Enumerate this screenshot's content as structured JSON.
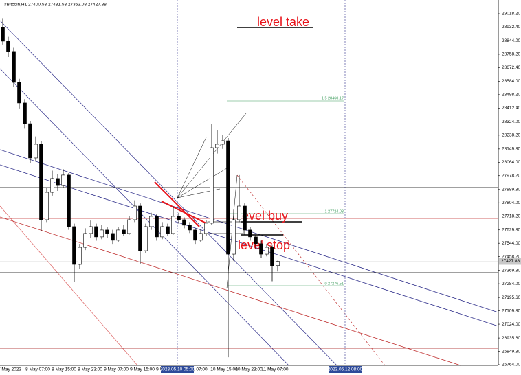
{
  "chart_data": {
    "type": "candlestick",
    "title": "#Bitcoin,H1  27400.53 27431.53 27363.08 27427.88",
    "ylim": [
      26724.3,
      29106.4
    ],
    "yticks": [
      {
        "value": 29018.2,
        "label": "29018.20"
      },
      {
        "value": 28932.4,
        "label": "28932.40"
      },
      {
        "value": 28844,
        "label": "28844.00"
      },
      {
        "value": 28758.2,
        "label": "28758.20"
      },
      {
        "value": 28672.4,
        "label": "28672.40"
      },
      {
        "value": 28584,
        "label": "28584.00"
      },
      {
        "value": 28498.2,
        "label": "28498.20"
      },
      {
        "value": 28412.4,
        "label": "28412.40"
      },
      {
        "value": 28324,
        "label": "28324.00"
      },
      {
        "value": 28238.2,
        "label": "28238.20"
      },
      {
        "value": 28149.8,
        "label": "28149.80"
      },
      {
        "value": 28064,
        "label": "28064.00"
      },
      {
        "value": 27978.2,
        "label": "27978.20"
      },
      {
        "value": 27889.8,
        "label": "27889.80"
      },
      {
        "value": 27804,
        "label": "27804.00"
      },
      {
        "value": 27718.2,
        "label": "27718.20"
      },
      {
        "value": 27629.8,
        "label": "27629.80"
      },
      {
        "value": 27544,
        "label": "27544.00"
      },
      {
        "value": 27458.2,
        "label": "27458.20"
      },
      {
        "value": 27369.8,
        "label": "27369.80"
      },
      {
        "value": 27284,
        "label": "27284.00"
      },
      {
        "value": 27195.6,
        "label": "27195.60"
      },
      {
        "value": 27109.8,
        "label": "27109.80"
      },
      {
        "value": 27024,
        "label": "27024.00"
      },
      {
        "value": 26935.6,
        "label": "26935.60"
      },
      {
        "value": 26849.8,
        "label": "26849.80"
      },
      {
        "value": 26764,
        "label": "26764.00"
      }
    ],
    "current_price": {
      "value": 27427.88,
      "label": "27427.88"
    },
    "x_tick_labels": [
      "7 May 2023",
      "8 May 07:00",
      "8 May 15:00",
      "8 May 23:00",
      "9 May 07:00",
      "9 May 15:00",
      "9 May 23:00",
      "y 07:00",
      "10 May 15:00",
      "10 May 23:00",
      "11 May 07:00"
    ],
    "crosshair_labels": [
      "2023.05.10 05:00",
      "2023.05.12 08:00"
    ],
    "annotations": [
      "level take",
      "level buy",
      "level stop"
    ],
    "fib_labels": [
      "1.5  28460.17",
      "1  27724.03",
      "0  27276.51"
    ],
    "candles": {
      "open": [
        28930,
        28842,
        28776,
        28577,
        28445,
        28312,
        28092,
        28180,
        27695,
        27871,
        27960,
        27915,
        27982,
        27651,
        27408,
        27518,
        27607,
        27651,
        27585,
        27629,
        27607,
        27563,
        27629,
        27607,
        27695,
        27783,
        27496,
        27651,
        27717,
        27585,
        27651,
        27607,
        27717,
        27695,
        27660,
        27629,
        27563,
        27607,
        27673,
        28158,
        28180,
        28202,
        27474,
        27695,
        27783,
        27629,
        27585,
        27541,
        27474,
        27518,
        27400.53
      ],
      "high": [
        28990,
        28870,
        28800,
        28600,
        28470,
        28330,
        28230,
        28200,
        27900,
        28010,
        27990,
        28020,
        27995,
        27670,
        27540,
        27640,
        27690,
        27670,
        27660,
        27650,
        27630,
        27650,
        27660,
        27720,
        27820,
        27800,
        27670,
        27740,
        27730,
        27680,
        27670,
        27780,
        27740,
        27710,
        27680,
        27640,
        27630,
        27690,
        28312,
        28270,
        28240,
        28220,
        27760,
        27982,
        27800,
        27650,
        27600,
        27560,
        27540,
        27530,
        27431.53
      ],
      "low": [
        28820,
        28740,
        28550,
        28410,
        28280,
        28060,
        28070,
        27620,
        27680,
        27850,
        27880,
        27900,
        27630,
        27298,
        27380,
        27500,
        27580,
        27560,
        27570,
        27580,
        27540,
        27550,
        27590,
        27600,
        27680,
        27408,
        27480,
        27630,
        27560,
        27570,
        27590,
        27600,
        27670,
        27640,
        27610,
        27540,
        27550,
        27590,
        27660,
        28120,
        28150,
        26812,
        27430,
        27680,
        27600,
        27560,
        27510,
        27450,
        27460,
        27300,
        27363.08
      ],
      "close": [
        28842,
        28776,
        28577,
        28445,
        28312,
        28092,
        28180,
        27695,
        27871,
        27960,
        27915,
        27982,
        27651,
        27408,
        27518,
        27607,
        27651,
        27585,
        27629,
        27607,
        27563,
        27629,
        27607,
        27695,
        27783,
        27496,
        27651,
        27717,
        27585,
        27651,
        27607,
        27717,
        27695,
        27660,
        27629,
        27563,
        27607,
        27673,
        28158,
        28180,
        28202,
        27474,
        27695,
        27783,
        27629,
        27585,
        27541,
        27474,
        27518,
        27400.53,
        27427.88
      ]
    }
  }
}
